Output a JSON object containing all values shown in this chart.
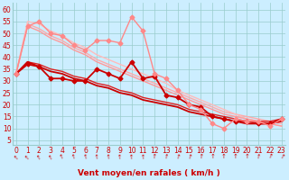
{
  "xlabel": "Vent moyen/en rafales ( km/h )",
  "bg_color": "#cceeff",
  "grid_color": "#99cccc",
  "x_ticks": [
    0,
    1,
    2,
    3,
    4,
    5,
    6,
    7,
    8,
    9,
    10,
    11,
    12,
    13,
    14,
    15,
    16,
    17,
    18,
    19,
    20,
    21,
    22,
    23
  ],
  "y_ticks": [
    5,
    10,
    15,
    20,
    25,
    30,
    35,
    40,
    45,
    50,
    55,
    60
  ],
  "ylim": [
    3,
    63
  ],
  "xlim": [
    -0.3,
    23.3
  ],
  "series": [
    {
      "x": [
        0,
        1,
        2,
        3,
        4,
        5,
        6,
        7,
        8,
        9,
        10,
        11,
        12,
        13,
        14,
        15,
        16,
        17,
        18,
        19,
        20,
        21,
        22,
        23
      ],
      "y": [
        33,
        37,
        36,
        31,
        31,
        30,
        30,
        35,
        33,
        31,
        38,
        31,
        32,
        24,
        23,
        20,
        19,
        15,
        14,
        13,
        13,
        12,
        12,
        14
      ],
      "color": "#cc0000",
      "lw": 1.3,
      "marker": "D",
      "ms": 2.5,
      "zorder": 5
    },
    {
      "x": [
        0,
        1,
        2,
        3,
        4,
        5,
        6,
        7,
        8,
        9,
        10,
        11,
        12,
        13,
        14,
        15,
        16,
        17,
        18,
        19,
        20,
        21,
        22,
        23
      ],
      "y": [
        33,
        38,
        36,
        34,
        33,
        31,
        30,
        28,
        27,
        25,
        24,
        22,
        21,
        20,
        19,
        17,
        16,
        15,
        14,
        13,
        12,
        12,
        12,
        13
      ],
      "color": "#cc0000",
      "lw": 1.3,
      "marker": null,
      "ms": 0,
      "zorder": 4
    },
    {
      "x": [
        0,
        1,
        2,
        3,
        4,
        5,
        6,
        7,
        8,
        9,
        10,
        11,
        12,
        13,
        14,
        15,
        16,
        17,
        18,
        19,
        20,
        21,
        22,
        23
      ],
      "y": [
        33,
        38,
        37,
        35,
        34,
        32,
        31,
        29,
        28,
        26,
        25,
        23,
        22,
        21,
        20,
        18,
        17,
        16,
        15,
        14,
        13,
        13,
        13,
        14
      ],
      "color": "#dd2222",
      "lw": 1.0,
      "marker": null,
      "ms": 0,
      "zorder": 3
    },
    {
      "x": [
        0,
        1,
        2,
        3,
        4,
        5,
        6,
        7,
        8,
        9,
        10,
        11,
        12,
        13,
        14,
        15,
        16,
        17,
        18,
        19,
        20,
        21,
        22,
        23
      ],
      "y": [
        33,
        53,
        55,
        50,
        49,
        45,
        43,
        47,
        47,
        46,
        57,
        51,
        33,
        31,
        26,
        20,
        18,
        12,
        10,
        14,
        13,
        13,
        11,
        14
      ],
      "color": "#ff8888",
      "lw": 1.0,
      "marker": "D",
      "ms": 2.5,
      "zorder": 5
    },
    {
      "x": [
        0,
        1,
        2,
        3,
        4,
        5,
        6,
        7,
        8,
        9,
        10,
        11,
        12,
        13,
        14,
        15,
        16,
        17,
        18,
        19,
        20,
        21,
        22,
        23
      ],
      "y": [
        33,
        54,
        52,
        49,
        47,
        44,
        42,
        39,
        37,
        35,
        33,
        31,
        29,
        27,
        25,
        23,
        21,
        19,
        17,
        16,
        15,
        14,
        13,
        12
      ],
      "color": "#ffaaaa",
      "lw": 1.0,
      "marker": null,
      "ms": 0,
      "zorder": 2
    },
    {
      "x": [
        0,
        1,
        2,
        3,
        4,
        5,
        6,
        7,
        8,
        9,
        10,
        11,
        12,
        13,
        14,
        15,
        16,
        17,
        18,
        19,
        20,
        21,
        22,
        23
      ],
      "y": [
        33,
        55,
        54,
        51,
        49,
        46,
        44,
        41,
        39,
        37,
        35,
        33,
        31,
        29,
        26,
        24,
        22,
        20,
        18,
        16,
        14,
        13,
        12,
        11
      ],
      "color": "#ffbbbb",
      "lw": 1.0,
      "marker": null,
      "ms": 0,
      "zorder": 2
    },
    {
      "x": [
        0,
        1,
        2,
        3,
        4,
        5,
        6,
        7,
        8,
        9,
        10,
        11,
        12,
        13,
        14,
        15,
        16,
        17,
        18,
        19,
        20,
        21,
        22,
        23
      ],
      "y": [
        33,
        53,
        51,
        48,
        46,
        43,
        41,
        38,
        36,
        34,
        32,
        30,
        28,
        26,
        24,
        22,
        20,
        18,
        16,
        15,
        14,
        13,
        12,
        11
      ],
      "color": "#ff9999",
      "lw": 1.0,
      "marker": null,
      "ms": 0,
      "zorder": 2
    }
  ],
  "wind_arrows": [
    {
      "x": 0,
      "rot": 45
    },
    {
      "x": 1,
      "rot": 45
    },
    {
      "x": 2,
      "rot": 30
    },
    {
      "x": 3,
      "rot": 30
    },
    {
      "x": 4,
      "rot": 25
    },
    {
      "x": 5,
      "rot": 20
    },
    {
      "x": 6,
      "rot": 15
    },
    {
      "x": 7,
      "rot": 10
    },
    {
      "x": 8,
      "rot": 10
    },
    {
      "x": 9,
      "rot": 5
    },
    {
      "x": 10,
      "rot": 5
    },
    {
      "x": 11,
      "rot": 5
    },
    {
      "x": 12,
      "rot": -5
    },
    {
      "x": 13,
      "rot": -10
    },
    {
      "x": 14,
      "rot": -15
    },
    {
      "x": 15,
      "rot": -15
    },
    {
      "x": 16,
      "rot": -5
    },
    {
      "x": 17,
      "rot": 0
    },
    {
      "x": 18,
      "rot": 0
    },
    {
      "x": 19,
      "rot": 0
    },
    {
      "x": 20,
      "rot": 0
    },
    {
      "x": 21,
      "rot": -10
    },
    {
      "x": 22,
      "rot": -20
    },
    {
      "x": 23,
      "rot": -30
    }
  ]
}
